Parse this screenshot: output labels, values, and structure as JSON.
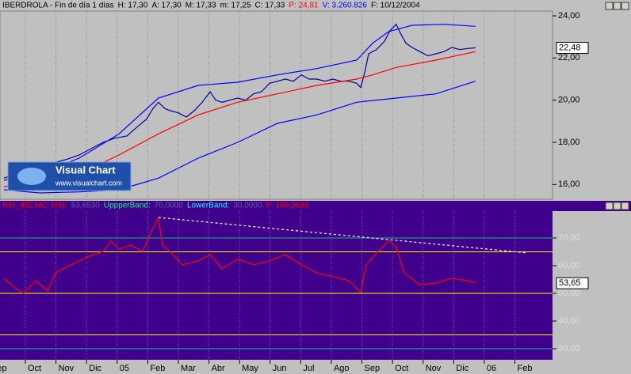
{
  "logo": {
    "title": "Visual Chart",
    "url": "www.visualchart.com"
  },
  "chart_data": [
    {
      "type": "line",
      "title": "IBERDROLA - Fin de día 1 días",
      "header_items": [
        {
          "text": "H: 17,30",
          "color": "#000000"
        },
        {
          "text": "A: 17,30",
          "color": "#000000"
        },
        {
          "text": "M: 17,33",
          "color": "#000000"
        },
        {
          "text": "m: 17,25",
          "color": "#000000"
        },
        {
          "text": "C: 17,33",
          "color": "#000000"
        },
        {
          "text": "P: 24,81",
          "color": "#ff0000"
        },
        {
          "text": "V: 3.260.826",
          "color": "#0000ff"
        },
        {
          "text": "F: 10/12/2004",
          "color": "#000000"
        }
      ],
      "last_value": 22.48,
      "last_label": "22,48",
      "ylim": [
        15.3,
        24.225
      ],
      "yticks": [
        {
          "value": 16,
          "label": "16,00"
        },
        {
          "value": 18,
          "label": "18,00"
        },
        {
          "value": 20,
          "label": "20,00"
        },
        {
          "value": 22,
          "label": "22,00"
        },
        {
          "value": 24,
          "label": "24,00"
        }
      ],
      "series": [
        {
          "color": "#0000a0",
          "x": [
            0.3,
            0.69,
            1.21,
            1.6,
            1.98,
            2.37,
            2.76,
            3.15,
            3.54,
            3.93,
            4.32,
            4.63,
            4.96,
            5.17,
            5.35,
            5.56,
            5.74,
            6.0,
            6.26,
            6.52,
            6.78,
            7.04,
            7.22,
            7.43,
            7.68,
            7.94,
            8.2,
            8.46,
            8.72,
            8.98,
            9.24,
            9.5,
            9.76,
            10.02,
            10.27,
            10.53,
            10.79,
            11.05,
            11.31,
            11.57,
            11.83,
            11.96,
            12.09,
            12.22,
            12.48,
            12.74,
            12.92,
            13.12,
            13.25,
            13.44,
            13.64,
            13.9,
            14.16,
            14.42,
            14.68,
            14.94,
            15.2,
            15.45,
            15.71
          ],
          "values": [
            16.3,
            16.5,
            16.7,
            16.9,
            17.05,
            17.2,
            17.4,
            17.7,
            18.0,
            18.2,
            18.3,
            18.7,
            19.1,
            19.6,
            19.9,
            19.6,
            19.5,
            19.4,
            19.2,
            19.5,
            19.9,
            20.4,
            20.0,
            19.9,
            20.0,
            20.1,
            20.0,
            20.3,
            20.4,
            20.8,
            20.9,
            21.0,
            20.9,
            21.2,
            21.0,
            21.0,
            20.9,
            21.0,
            20.9,
            20.9,
            20.8,
            20.6,
            21.3,
            22.2,
            22.4,
            22.8,
            23.3,
            23.6,
            23.2,
            22.7,
            22.5,
            22.3,
            22.1,
            22.2,
            22.3,
            22.5,
            22.4,
            22.45,
            22.48
          ]
        },
        {
          "color": "#0000ff",
          "x": [
            0.3,
            1.47,
            2.76,
            4.06,
            5.35,
            6.65,
            7.94,
            9.24,
            10.53,
            11.83,
            12.35,
            12.87,
            13.64,
            14.68,
            15.71
          ],
          "values": [
            16.2,
            16.5,
            17.25,
            18.4,
            20.1,
            20.7,
            20.85,
            21.2,
            21.5,
            21.9,
            22.7,
            23.25,
            23.55,
            23.6,
            23.5
          ]
        },
        {
          "color": "#ff0000",
          "x": [
            0.3,
            1.73,
            2.76,
            4.06,
            5.35,
            6.65,
            7.94,
            9.24,
            10.53,
            11.83,
            12.35,
            13.12,
            14.42,
            15.71
          ],
          "values": [
            15.9,
            16.2,
            16.5,
            17.4,
            18.4,
            19.3,
            19.9,
            20.3,
            20.7,
            21.0,
            21.2,
            21.55,
            21.9,
            22.3
          ]
        },
        {
          "color": "#0000ff",
          "x": [
            0.3,
            1.47,
            2.76,
            4.06,
            5.35,
            6.65,
            7.94,
            9.24,
            10.53,
            11.83,
            13.12,
            14.42,
            15.71
          ],
          "values": [
            15.75,
            15.6,
            15.65,
            15.75,
            16.3,
            17.25,
            18.0,
            18.9,
            19.3,
            19.9,
            20.1,
            20.3,
            20.9
          ]
        }
      ]
    },
    {
      "type": "line",
      "legend": [
        {
          "text": "RSI_IBE.MC: RSI:",
          "color": "#ff0000"
        },
        {
          "text": "53,6530",
          "color": "#6060a0"
        },
        {
          "text": "UppperBand:",
          "color": "#00ff80"
        },
        {
          "text": "70,0000",
          "color": "#6060a0"
        },
        {
          "text": "LowerBand:",
          "color": "#00ffff"
        },
        {
          "text": "30,0000",
          "color": "#6060a0"
        },
        {
          "text": "P: 156,3634",
          "color": "#ff0000"
        }
      ],
      "last_value": 53.65,
      "last_label": "53,65",
      "ylim": [
        26,
        79.7
      ],
      "yticks": [
        {
          "value": 30,
          "label": "30,00"
        },
        {
          "value": 40,
          "label": "40,00"
        },
        {
          "value": 50,
          "label": "50,00"
        },
        {
          "value": 60,
          "label": "60,00"
        },
        {
          "value": 70,
          "label": "70,00"
        }
      ],
      "xlim": [
        0.171,
        18.23
      ],
      "xticks": [
        {
          "value": 0,
          "label": "ep"
        },
        {
          "value": 1,
          "label": "Oct"
        },
        {
          "value": 2,
          "label": "Nov"
        },
        {
          "value": 3,
          "label": "Dic"
        },
        {
          "value": 4,
          "label": "05"
        },
        {
          "value": 5,
          "label": "Feb"
        },
        {
          "value": 6,
          "label": "Mar"
        },
        {
          "value": 7,
          "label": "Abr"
        },
        {
          "value": 8,
          "label": "May"
        },
        {
          "value": 9,
          "label": "Jun"
        },
        {
          "value": 10,
          "label": "Jul"
        },
        {
          "value": 11,
          "label": "Ago"
        },
        {
          "value": 12,
          "label": "Sep"
        },
        {
          "value": 13,
          "label": "Oct"
        },
        {
          "value": 14,
          "label": "Nov"
        },
        {
          "value": 15,
          "label": "Dic"
        },
        {
          "value": 16,
          "label": "06"
        },
        {
          "value": 17,
          "label": "Feb"
        }
      ],
      "levels": [
        {
          "value": 70,
          "color": "#00c080"
        },
        {
          "value": 65,
          "color": "#ffff00"
        },
        {
          "value": 50,
          "color": "#ffff00"
        },
        {
          "value": 35,
          "color": "#ffff00"
        },
        {
          "value": 30,
          "color": "#00c0c0"
        }
      ],
      "trendline": {
        "x": [
          5.35,
          17.4
        ],
        "values": [
          77.4,
          64.6
        ],
        "color": "#ffffff"
      },
      "series": [
        {
          "color": "#ff0000",
          "x": [
            0.3,
            0.69,
            0.95,
            1.34,
            1.73,
            1.98,
            2.5,
            3.02,
            3.54,
            3.8,
            4.06,
            4.45,
            4.83,
            5.09,
            5.35,
            5.48,
            5.74,
            6.13,
            6.65,
            7.04,
            7.43,
            7.94,
            8.46,
            8.98,
            9.5,
            10.02,
            10.53,
            11.05,
            11.57,
            11.96,
            12.14,
            12.48,
            12.87,
            13.12,
            13.38,
            13.9,
            14.42,
            14.94,
            15.45,
            15.71
          ],
          "values": [
            55.4,
            51.7,
            50,
            54.6,
            50.9,
            57.4,
            60.3,
            63.1,
            65.1,
            68.9,
            66,
            67.4,
            65.1,
            71.7,
            77.4,
            67.4,
            65,
            60.3,
            61.7,
            64,
            58.9,
            62.3,
            60.3,
            61.7,
            64,
            60.3,
            57.4,
            56,
            54.6,
            50.3,
            60.3,
            64.6,
            68.9,
            66.9,
            57.4,
            53.1,
            53.7,
            55.4,
            54.6,
            53.65
          ]
        }
      ]
    }
  ]
}
